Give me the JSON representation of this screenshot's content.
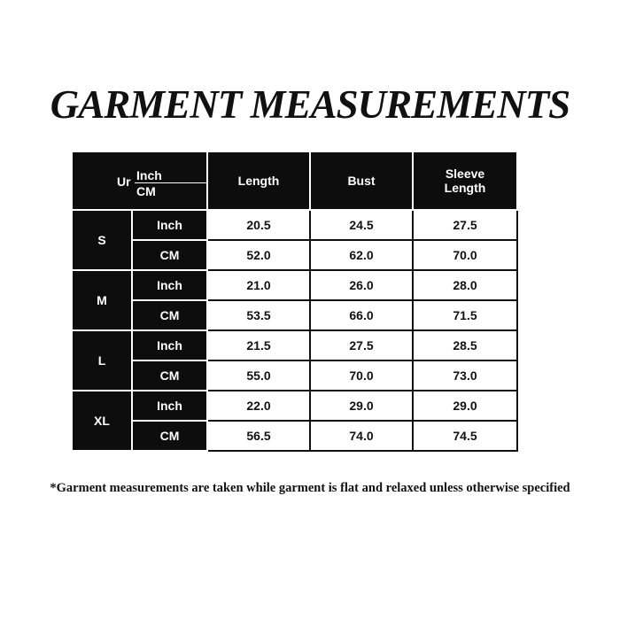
{
  "title": "GARMENT MEASUREMENTS",
  "header": {
    "corner_prefix": "Ur",
    "corner_top": "Inch",
    "corner_bottom": "CM",
    "columns": [
      "Length",
      "Bust",
      "Sleeve Length"
    ]
  },
  "rows": [
    {
      "size": "S",
      "inch": {
        "unit": "Inch",
        "values": [
          "20.5",
          "24.5",
          "27.5"
        ]
      },
      "cm": {
        "unit": "CM",
        "values": [
          "52.0",
          "62.0",
          "70.0"
        ]
      }
    },
    {
      "size": "M",
      "inch": {
        "unit": "Inch",
        "values": [
          "21.0",
          "26.0",
          "28.0"
        ]
      },
      "cm": {
        "unit": "CM",
        "values": [
          "53.5",
          "66.0",
          "71.5"
        ]
      }
    },
    {
      "size": "L",
      "inch": {
        "unit": "Inch",
        "values": [
          "21.5",
          "27.5",
          "28.5"
        ]
      },
      "cm": {
        "unit": "CM",
        "values": [
          "55.0",
          "70.0",
          "73.0"
        ]
      }
    },
    {
      "size": "XL",
      "inch": {
        "unit": "Inch",
        "values": [
          "22.0",
          "29.0",
          "29.0"
        ]
      },
      "cm": {
        "unit": "CM",
        "values": [
          "56.5",
          "74.0",
          "74.5"
        ]
      }
    }
  ],
  "footnote": "*Garment measurements are taken while garment is flat and relaxed unless otherwise specified"
}
